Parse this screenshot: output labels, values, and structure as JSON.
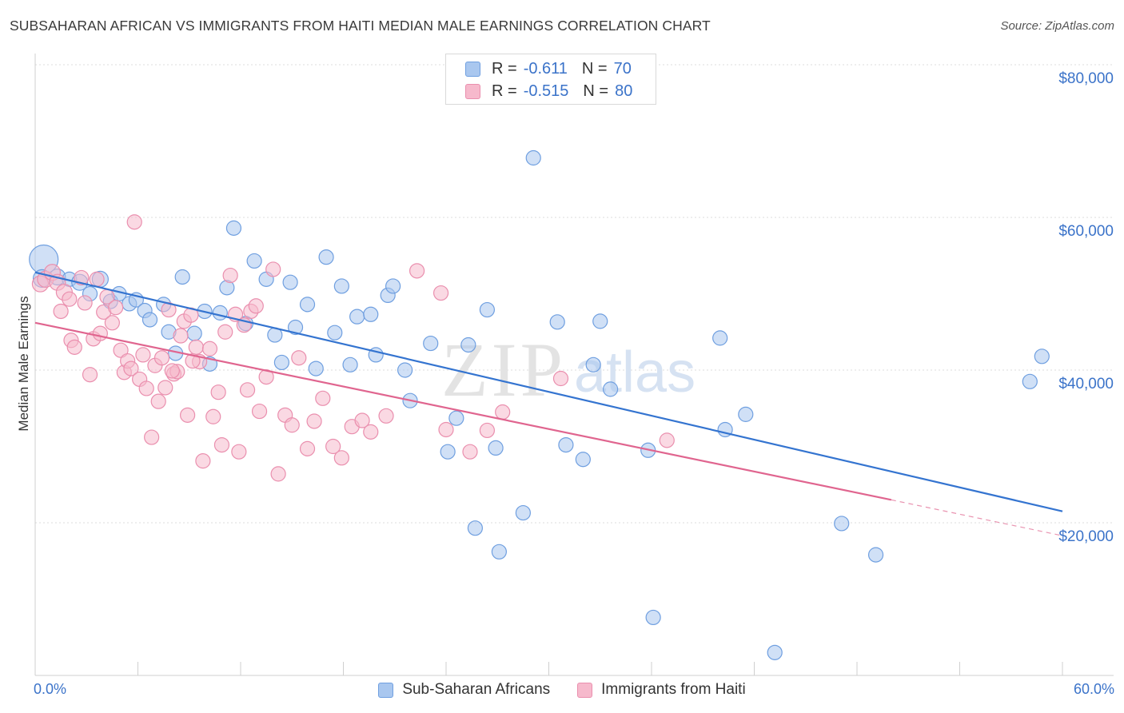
{
  "title": "SUBSAHARAN AFRICAN VS IMMIGRANTS FROM HAITI MEDIAN MALE EARNINGS CORRELATION CHART",
  "source": "Source: ZipAtlas.com",
  "watermark": {
    "zip": "ZIP",
    "atlas": "atlas"
  },
  "legend_top": {
    "rows": [
      {
        "r_label": "R =",
        "r_value": "-0.611",
        "n_label": "N =",
        "n_value": "70",
        "color": "#a9c7ef",
        "stroke": "#6f9fe0"
      },
      {
        "r_label": "R =",
        "r_value": "-0.515",
        "n_label": "N =",
        "n_value": "80",
        "color": "#f6b9cc",
        "stroke": "#ea8fae"
      }
    ]
  },
  "legend_bottom": [
    {
      "label": "Sub-Saharan Africans",
      "color": "#a9c7ef",
      "stroke": "#6f9fe0"
    },
    {
      "label": "Immigrants from Haiti",
      "color": "#f6b9cc",
      "stroke": "#ea8fae"
    }
  ],
  "chart_data": {
    "type": "scatter",
    "title": "SUBSAHARAN AFRICAN VS IMMIGRANTS FROM HAITI MEDIAN MALE EARNINGS CORRELATION CHART",
    "xlabel": "",
    "ylabel": "Median Male Earnings",
    "xlim": [
      0,
      60
    ],
    "ylim": [
      0,
      82000
    ],
    "x_tick_labels": [
      "0.0%",
      "60.0%"
    ],
    "y_ticks": [
      20000,
      40000,
      60000,
      80000
    ],
    "y_tick_labels": [
      "$20,000",
      "$40,000",
      "$60,000",
      "$80,000"
    ],
    "grid": true,
    "legend_position": "top-center",
    "series": [
      {
        "name": "Sub-Saharan Africans",
        "color": "#6f9fe0",
        "fill": "#a9c7ef",
        "trend": {
          "x0": 0,
          "y0": 52800,
          "x1": 60,
          "y1": 21500,
          "color": "#3474d0"
        },
        "points": [
          [
            0.5,
            54500,
            18
          ],
          [
            0.4,
            52000,
            11
          ],
          [
            1.3,
            52200,
            10
          ],
          [
            2.0,
            51900,
            9
          ],
          [
            2.6,
            51500,
            10
          ],
          [
            3.8,
            51900,
            10
          ],
          [
            4.4,
            49000,
            9
          ],
          [
            3.2,
            50000,
            9
          ],
          [
            4.9,
            50000,
            9
          ],
          [
            5.5,
            48700,
            9
          ],
          [
            5.9,
            49200,
            9
          ],
          [
            6.4,
            47800,
            9
          ],
          [
            6.7,
            46600,
            9
          ],
          [
            7.5,
            48600,
            9
          ],
          [
            7.8,
            45000,
            9
          ],
          [
            8.2,
            42200,
            9
          ],
          [
            8.6,
            52200,
            9
          ],
          [
            9.3,
            44800,
            9
          ],
          [
            9.9,
            47700,
            9
          ],
          [
            10.2,
            40800,
            9
          ],
          [
            10.8,
            47500,
            9
          ],
          [
            11.2,
            50800,
            9
          ],
          [
            11.6,
            58600,
            9
          ],
          [
            12.3,
            46100,
            9
          ],
          [
            12.8,
            54300,
            9
          ],
          [
            13.5,
            51900,
            9
          ],
          [
            14.0,
            44600,
            9
          ],
          [
            14.4,
            41000,
            9
          ],
          [
            14.9,
            51500,
            9
          ],
          [
            15.2,
            45600,
            9
          ],
          [
            15.9,
            48600,
            9
          ],
          [
            16.4,
            40200,
            9
          ],
          [
            17.0,
            54800,
            9
          ],
          [
            17.5,
            44900,
            9
          ],
          [
            17.9,
            51000,
            9
          ],
          [
            18.4,
            40700,
            9
          ],
          [
            18.8,
            47000,
            9
          ],
          [
            19.6,
            47300,
            9
          ],
          [
            19.9,
            42000,
            9
          ],
          [
            20.6,
            49800,
            9
          ],
          [
            20.9,
            51000,
            9
          ],
          [
            21.6,
            40000,
            9
          ],
          [
            21.9,
            36000,
            9
          ],
          [
            23.1,
            43500,
            9
          ],
          [
            24.1,
            29300,
            9
          ],
          [
            24.6,
            33700,
            9
          ],
          [
            25.3,
            43300,
            9
          ],
          [
            25.7,
            19300,
            9
          ],
          [
            26.4,
            47900,
            9
          ],
          [
            26.9,
            29800,
            9
          ],
          [
            27.1,
            16200,
            9
          ],
          [
            28.5,
            21300,
            9
          ],
          [
            29.1,
            67800,
            9
          ],
          [
            30.5,
            46300,
            9
          ],
          [
            31.0,
            30200,
            9
          ],
          [
            32.0,
            28300,
            9
          ],
          [
            32.6,
            40700,
            9
          ],
          [
            33.0,
            46400,
            9
          ],
          [
            33.6,
            37500,
            9
          ],
          [
            35.8,
            29500,
            9
          ],
          [
            36.1,
            7600,
            9
          ],
          [
            40.0,
            44200,
            9
          ],
          [
            40.3,
            32200,
            9
          ],
          [
            41.5,
            34200,
            9
          ],
          [
            43.2,
            3000,
            9
          ],
          [
            47.1,
            19900,
            9
          ],
          [
            49.1,
            15800,
            9
          ],
          [
            58.1,
            38500,
            9
          ],
          [
            58.8,
            41800,
            9
          ],
          [
            37.5,
            35300,
            0
          ]
        ]
      },
      {
        "name": "Immigrants from Haiti",
        "color": "#ea8fae",
        "fill": "#f6b9cc",
        "trend": {
          "x0": 0,
          "y0": 46200,
          "x1": 50,
          "y1": 23000,
          "color": "#e0658f",
          "dash_to_x": 60,
          "dash_to_y": 18300
        },
        "points": [
          [
            0.3,
            51300,
            10
          ],
          [
            0.6,
            51900,
            10
          ],
          [
            1.0,
            52800,
            10
          ],
          [
            1.3,
            51500,
            10
          ],
          [
            1.7,
            50200,
            10
          ],
          [
            1.5,
            47700,
            9
          ],
          [
            2.0,
            49300,
            9
          ],
          [
            2.1,
            43900,
            9
          ],
          [
            2.3,
            43000,
            9
          ],
          [
            2.7,
            52100,
            9
          ],
          [
            2.9,
            48800,
            9
          ],
          [
            3.2,
            39400,
            9
          ],
          [
            3.4,
            44100,
            9
          ],
          [
            3.6,
            51900,
            9
          ],
          [
            3.8,
            44800,
            9
          ],
          [
            4.0,
            47600,
            9
          ],
          [
            4.2,
            49600,
            9
          ],
          [
            4.5,
            46200,
            9
          ],
          [
            4.7,
            48200,
            9
          ],
          [
            5.0,
            42600,
            9
          ],
          [
            5.2,
            39700,
            9
          ],
          [
            5.4,
            41200,
            9
          ],
          [
            5.6,
            40200,
            9
          ],
          [
            5.8,
            59400,
            9
          ],
          [
            6.1,
            38800,
            9
          ],
          [
            6.3,
            42000,
            9
          ],
          [
            6.5,
            37600,
            9
          ],
          [
            6.8,
            31200,
            9
          ],
          [
            7.0,
            40600,
            9
          ],
          [
            7.2,
            35900,
            9
          ],
          [
            7.4,
            41600,
            9
          ],
          [
            7.6,
            37700,
            9
          ],
          [
            7.8,
            47900,
            9
          ],
          [
            8.1,
            39500,
            9
          ],
          [
            8.3,
            39800,
            9
          ],
          [
            8.5,
            44500,
            9
          ],
          [
            8.7,
            46400,
            9
          ],
          [
            8.9,
            34100,
            9
          ],
          [
            9.1,
            47200,
            9
          ],
          [
            9.4,
            43000,
            9
          ],
          [
            9.6,
            41100,
            9
          ],
          [
            9.8,
            28100,
            9
          ],
          [
            10.2,
            42800,
            9
          ],
          [
            10.4,
            33900,
            9
          ],
          [
            10.7,
            37100,
            9
          ],
          [
            10.9,
            30200,
            9
          ],
          [
            11.1,
            45000,
            9
          ],
          [
            11.4,
            52400,
            9
          ],
          [
            11.7,
            47300,
            9
          ],
          [
            11.9,
            29300,
            9
          ],
          [
            12.2,
            45900,
            9
          ],
          [
            12.4,
            37400,
            9
          ],
          [
            12.6,
            47700,
            9
          ],
          [
            12.9,
            48400,
            9
          ],
          [
            13.1,
            34600,
            9
          ],
          [
            13.5,
            39100,
            9
          ],
          [
            13.9,
            53200,
            9
          ],
          [
            14.2,
            26400,
            9
          ],
          [
            14.6,
            34100,
            9
          ],
          [
            15.0,
            32800,
            9
          ],
          [
            15.4,
            41600,
            9
          ],
          [
            15.9,
            29700,
            9
          ],
          [
            16.3,
            33300,
            9
          ],
          [
            16.8,
            36300,
            9
          ],
          [
            17.4,
            30000,
            9
          ],
          [
            17.9,
            28500,
            9
          ],
          [
            18.5,
            32600,
            9
          ],
          [
            19.1,
            33400,
            9
          ],
          [
            19.6,
            31900,
            9
          ],
          [
            20.5,
            34000,
            9
          ],
          [
            22.3,
            53000,
            9
          ],
          [
            23.7,
            50100,
            9
          ],
          [
            24.0,
            32200,
            9
          ],
          [
            25.4,
            29300,
            9
          ],
          [
            26.4,
            32100,
            9
          ],
          [
            27.3,
            34500,
            9
          ],
          [
            30.7,
            38900,
            9
          ],
          [
            36.9,
            30800,
            9
          ],
          [
            9.2,
            41200,
            9
          ],
          [
            8.0,
            39900,
            9
          ]
        ]
      }
    ]
  }
}
